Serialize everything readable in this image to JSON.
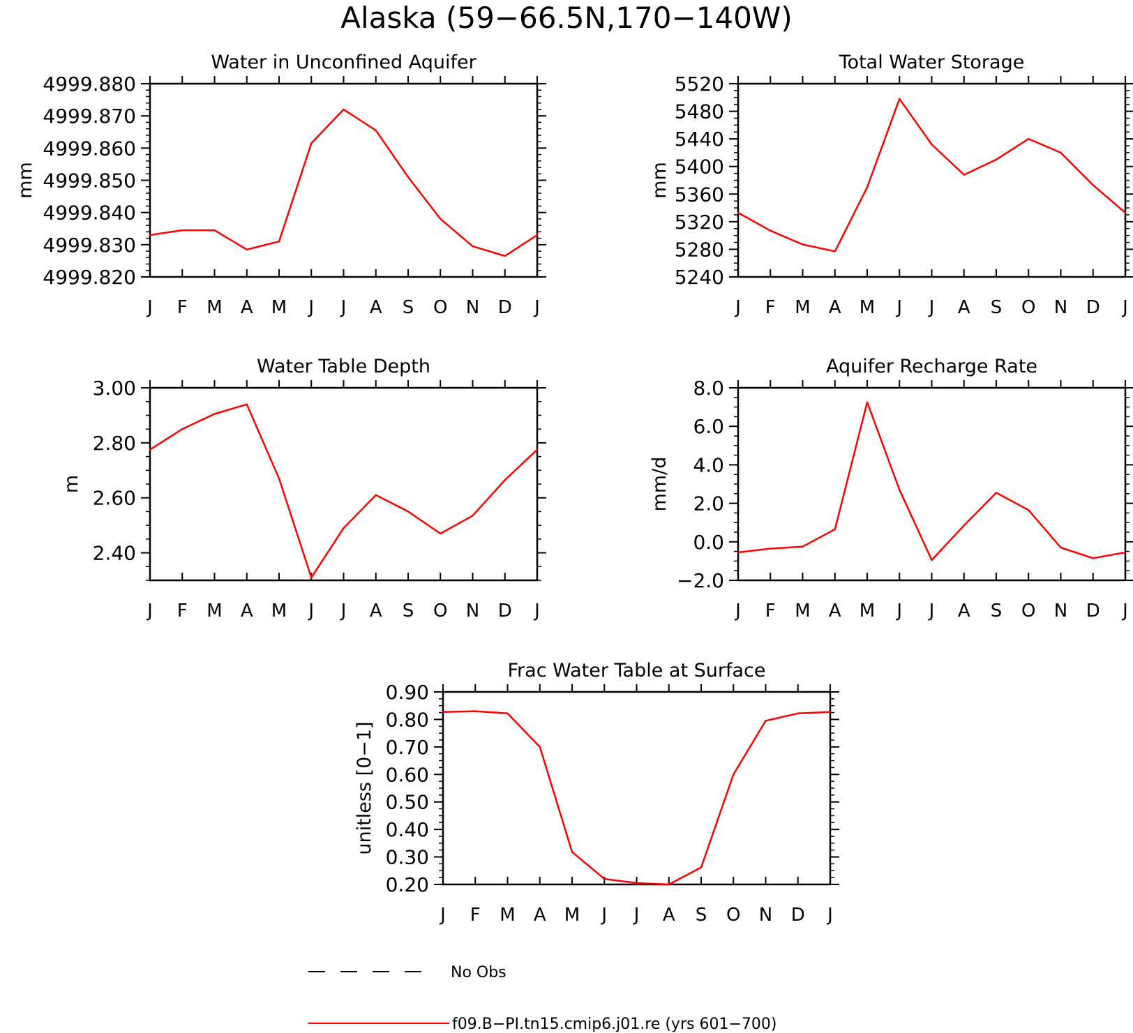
{
  "figure": {
    "title": "Alaska (59−66.5N,170−140W)",
    "line_color": "#ff0000",
    "legend": {
      "placement": "bottom-center",
      "entries": [
        {
          "label": "No Obs",
          "style": "dashed",
          "color": "#000000"
        },
        {
          "label": "f09.B−PI.tn15.cmip6.j01.re (yrs 601−700)",
          "style": "solid",
          "color": "#ff0000"
        }
      ]
    }
  },
  "chart_data": [
    {
      "type": "line",
      "title": "Water in Unconfined Aquifer",
      "ylabel": "mm",
      "xlabel": "",
      "categories": [
        "J",
        "F",
        "M",
        "A",
        "M",
        "J",
        "J",
        "A",
        "S",
        "O",
        "N",
        "D",
        "J"
      ],
      "ylim": [
        4999.82,
        4999.88
      ],
      "yticks": [
        4999.82,
        4999.83,
        4999.84,
        4999.85,
        4999.86,
        4999.87,
        4999.88
      ],
      "ytick_labels": [
        "4999.820",
        "4999.830",
        "4999.840",
        "4999.850",
        "4999.860",
        "4999.870",
        "4999.880"
      ],
      "series": [
        {
          "values": [
            4999.833,
            4999.8345,
            4999.8345,
            4999.8285,
            4999.831,
            4999.8615,
            4999.872,
            4999.8655,
            4999.851,
            4999.838,
            4999.8295,
            4999.8265,
            4999.833
          ]
        }
      ]
    },
    {
      "type": "line",
      "title": "Total Water Storage",
      "ylabel": "mm",
      "xlabel": "",
      "categories": [
        "J",
        "F",
        "M",
        "A",
        "M",
        "J",
        "J",
        "A",
        "S",
        "O",
        "N",
        "D",
        "J"
      ],
      "ylim": [
        5240,
        5520
      ],
      "yticks": [
        5240,
        5280,
        5320,
        5360,
        5400,
        5440,
        5480,
        5520
      ],
      "ytick_labels": [
        "5240",
        "5280",
        "5320",
        "5360",
        "5400",
        "5440",
        "5480",
        "5520"
      ],
      "series": [
        {
          "values": [
            5333,
            5307,
            5287,
            5277,
            5370,
            5498,
            5432,
            5388,
            5410,
            5440,
            5420,
            5373,
            5333
          ]
        }
      ]
    },
    {
      "type": "line",
      "title": "Water Table Depth",
      "ylabel": "m",
      "xlabel": "",
      "categories": [
        "J",
        "F",
        "M",
        "A",
        "M",
        "J",
        "J",
        "A",
        "S",
        "O",
        "N",
        "D",
        "J"
      ],
      "ylim": [
        2.3,
        3.0
      ],
      "yticks": [
        2.4,
        2.6,
        2.8,
        3.0
      ],
      "ytick_labels": [
        "2.40",
        "2.60",
        "2.80",
        "3.00"
      ],
      "series": [
        {
          "values": [
            2.775,
            2.85,
            2.905,
            2.94,
            2.67,
            2.31,
            2.49,
            2.61,
            2.55,
            2.47,
            2.535,
            2.665,
            2.775
          ]
        }
      ]
    },
    {
      "type": "line",
      "title": "Aquifer Recharge Rate",
      "ylabel": "mm/d",
      "xlabel": "",
      "categories": [
        "J",
        "F",
        "M",
        "A",
        "M",
        "J",
        "J",
        "A",
        "S",
        "O",
        "N",
        "D",
        "J"
      ],
      "ylim": [
        -2.0,
        8.0
      ],
      "yticks": [
        -2.0,
        0.0,
        2.0,
        4.0,
        6.0,
        8.0
      ],
      "ytick_labels": [
        "−2.0",
        "0.0",
        "2.0",
        "4.0",
        "6.0",
        "8.0"
      ],
      "series": [
        {
          "values": [
            -0.55,
            -0.35,
            -0.25,
            0.65,
            7.25,
            2.7,
            -0.95,
            0.85,
            2.55,
            1.65,
            -0.3,
            -0.85,
            -0.55
          ]
        }
      ]
    },
    {
      "type": "line",
      "title": "Frac Water Table at Surface",
      "ylabel": "unitless [0−1]",
      "xlabel": "",
      "categories": [
        "J",
        "F",
        "M",
        "A",
        "M",
        "J",
        "J",
        "A",
        "S",
        "O",
        "N",
        "D",
        "J"
      ],
      "ylim": [
        0.2,
        0.9
      ],
      "yticks": [
        0.2,
        0.3,
        0.4,
        0.5,
        0.6,
        0.7,
        0.8,
        0.9
      ],
      "ytick_labels": [
        "0.20",
        "0.30",
        "0.40",
        "0.50",
        "0.60",
        "0.70",
        "0.80",
        "0.90"
      ],
      "series": [
        {
          "values": [
            0.827,
            0.83,
            0.822,
            0.7,
            0.318,
            0.22,
            0.205,
            0.2,
            0.262,
            0.6,
            0.795,
            0.822,
            0.827
          ]
        }
      ]
    }
  ]
}
